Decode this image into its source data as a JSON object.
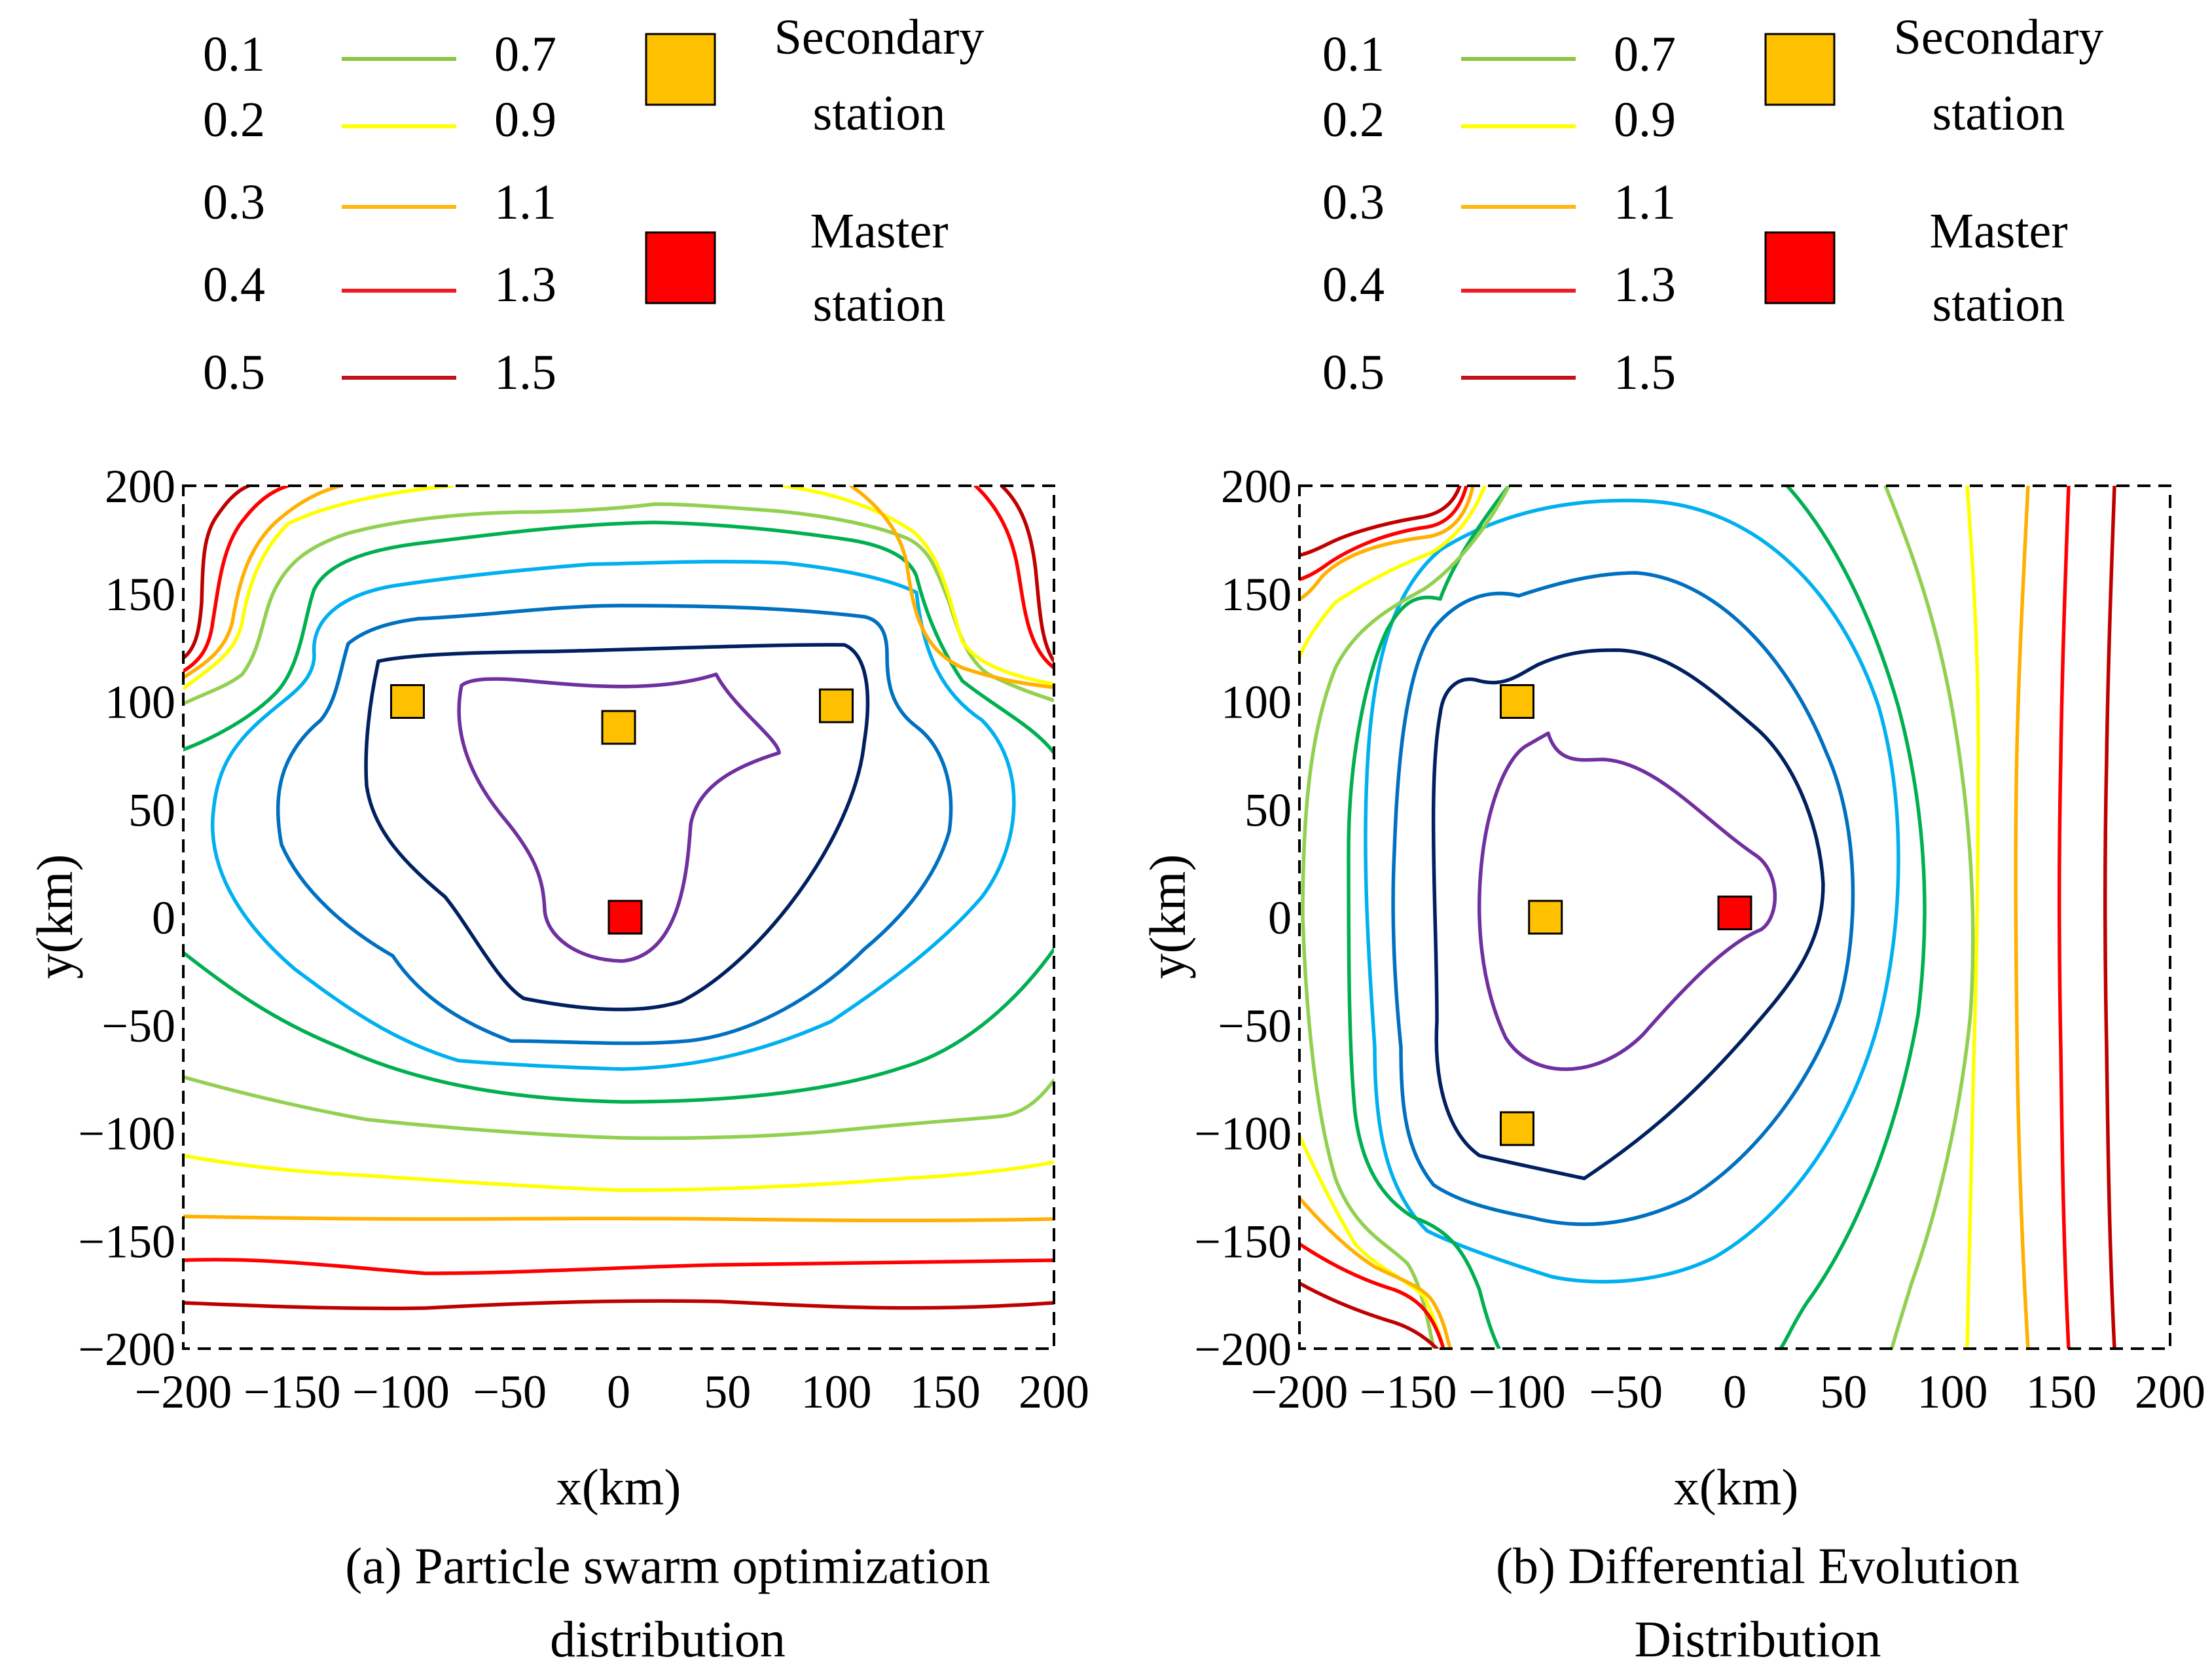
{
  "legend": {
    "levels_left": [
      "0.1",
      "0.2",
      "0.3",
      "0.4",
      "0.5"
    ],
    "levels_right": [
      "0.7",
      "0.9",
      "1.1",
      "1.3",
      "1.5"
    ],
    "line_colors": [
      "#8dc63f",
      "#ffff00",
      "#fdb813",
      "#ed1c24",
      "#c1121f"
    ],
    "secondary_label": [
      "Secondary",
      "station"
    ],
    "master_label": [
      "Master",
      "station"
    ]
  },
  "colors": {
    "secondary": "#ffc000",
    "master": "#ff0000",
    "frame": "#000000",
    "levels": {
      "0.1": "#7030a0",
      "0.2": "#002060",
      "0.3": "#0070c0",
      "0.4": "#00b0f0",
      "0.5": "#00b050",
      "0.7": "#92d050",
      "0.9": "#ffff00",
      "1.1": "#ffb000",
      "1.3": "#ff0000",
      "1.5": "#c00000"
    }
  },
  "chart_data": [
    {
      "type": "contour",
      "title": "(a)  Particle swarm optimization distribution",
      "title_lines": [
        "(a)  Particle swarm optimization",
        "distribution"
      ],
      "xlabel": "x(km)",
      "ylabel": "y(km)",
      "xlim": [
        -200,
        200
      ],
      "ylim": [
        -200,
        200
      ],
      "xticks": [
        -200,
        -150,
        -100,
        -50,
        0,
        50,
        100,
        150,
        200
      ],
      "yticks": [
        200,
        150,
        100,
        50,
        0,
        -50,
        -100,
        -150,
        -200
      ],
      "contour_levels": [
        0.1,
        0.2,
        0.3,
        0.4,
        0.5,
        0.7,
        0.9,
        1.1,
        1.3,
        1.5
      ],
      "master_station": {
        "x": 3,
        "y": 0
      },
      "secondary_stations": [
        {
          "x": -97,
          "y": 100
        },
        {
          "x": 0,
          "y": 88
        },
        {
          "x": 100,
          "y": 98
        }
      ]
    },
    {
      "type": "contour",
      "title": "(b) Differential Evolution Distribution",
      "title_lines": [
        "(b) Differential Evolution",
        "Distribution"
      ],
      "xlabel": "x(km)",
      "ylabel": "y(km)",
      "xlim": [
        -200,
        200
      ],
      "ylim": [
        -200,
        200
      ],
      "xticks": [
        -200,
        -150,
        -100,
        -50,
        0,
        50,
        100,
        150,
        200
      ],
      "yticks": [
        200,
        150,
        100,
        50,
        0,
        -50,
        -100,
        -150,
        -200
      ],
      "contour_levels": [
        0.1,
        0.2,
        0.3,
        0.4,
        0.5,
        0.7,
        0.9,
        1.1,
        1.3,
        1.5
      ],
      "master_station": {
        "x": 0,
        "y": 2
      },
      "secondary_stations": [
        {
          "x": -100,
          "y": 100
        },
        {
          "x": -87,
          "y": 0
        },
        {
          "x": -100,
          "y": -98
        }
      ]
    }
  ]
}
